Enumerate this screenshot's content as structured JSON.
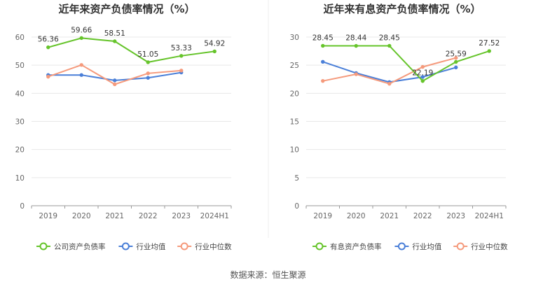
{
  "chart_data": [
    {
      "type": "line",
      "title": "近年来资产负债率情况（%）",
      "categories": [
        "2019",
        "2020",
        "2021",
        "2022",
        "2023",
        "2024H1"
      ],
      "yticks": [
        "0",
        "10",
        "20",
        "30",
        "40",
        "50",
        "60"
      ],
      "ylim": [
        0,
        60
      ],
      "series": [
        {
          "name": "公司资产负债率",
          "color": "#66c42b",
          "values": [
            56.36,
            59.66,
            58.51,
            51.05,
            53.33,
            54.92
          ],
          "labels": [
            "56.36",
            "59.66",
            "58.51",
            "51.05",
            "53.33",
            "54.92"
          ]
        },
        {
          "name": "行业均值",
          "color": "#4a7fd8",
          "values": [
            46.5,
            46.5,
            44.6,
            45.5,
            47.4,
            null
          ]
        },
        {
          "name": "行业中位数",
          "color": "#f59a7c",
          "values": [
            45.9,
            50.1,
            43.2,
            47.1,
            48.1,
            null
          ]
        }
      ]
    },
    {
      "type": "line",
      "title": "近年来有息资产负债率情况（%）",
      "categories": [
        "2019",
        "2020",
        "2021",
        "2022",
        "2023",
        "2024H1"
      ],
      "yticks": [
        "0",
        "5",
        "10",
        "15",
        "20",
        "25",
        "30"
      ],
      "ylim": [
        0,
        30
      ],
      "series": [
        {
          "name": "有息资产负债率",
          "color": "#66c42b",
          "values": [
            28.45,
            28.44,
            28.45,
            22.19,
            25.59,
            27.52
          ],
          "labels": [
            "28.45",
            "28.44",
            "28.45",
            "22.19",
            "25.59",
            "27.52"
          ]
        },
        {
          "name": "行业均值",
          "color": "#4a7fd8",
          "values": [
            25.6,
            23.6,
            22.0,
            22.9,
            24.6,
            null
          ]
        },
        {
          "name": "行业中位数",
          "color": "#f59a7c",
          "values": [
            22.2,
            23.4,
            21.7,
            24.7,
            26.3,
            null
          ]
        }
      ]
    }
  ],
  "footer": {
    "source": "数据来源：恒生聚源"
  }
}
